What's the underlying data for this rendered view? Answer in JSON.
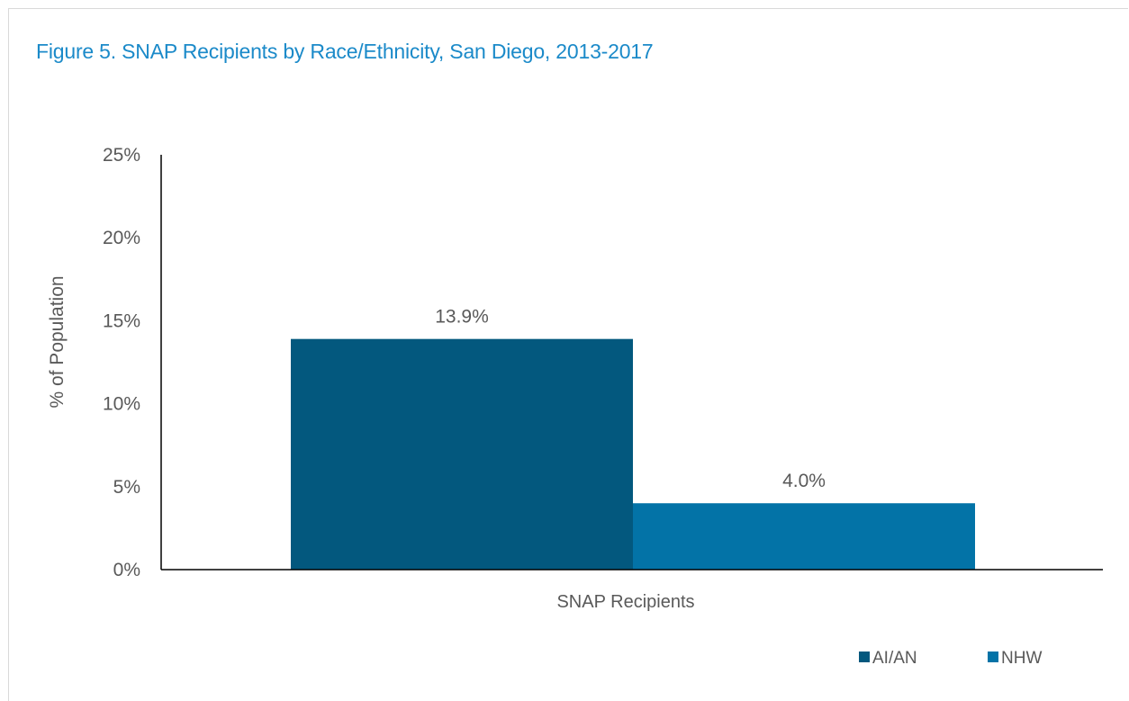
{
  "chart_data": {
    "type": "bar",
    "title": "Figure 5. SNAP Recipients by Race/Ethnicity, San Diego, 2013-2017",
    "categories": [
      "SNAP Recipients"
    ],
    "series": [
      {
        "name": "AI/AN",
        "values": [
          13.9
        ],
        "color": "#03587e",
        "label": "13.9%"
      },
      {
        "name": "NHW",
        "values": [
          4.0
        ],
        "color": "#0373a7",
        "label": "4.0%"
      }
    ],
    "ylabel": "% of Population",
    "xlabel": "",
    "ylim": [
      0,
      25
    ],
    "yticks": [
      0,
      5,
      10,
      15,
      20,
      25
    ],
    "ytick_labels": [
      "0%",
      "5%",
      "10%",
      "15%",
      "20%",
      "25%"
    ],
    "grid": false,
    "legend_position": "bottom-right"
  }
}
